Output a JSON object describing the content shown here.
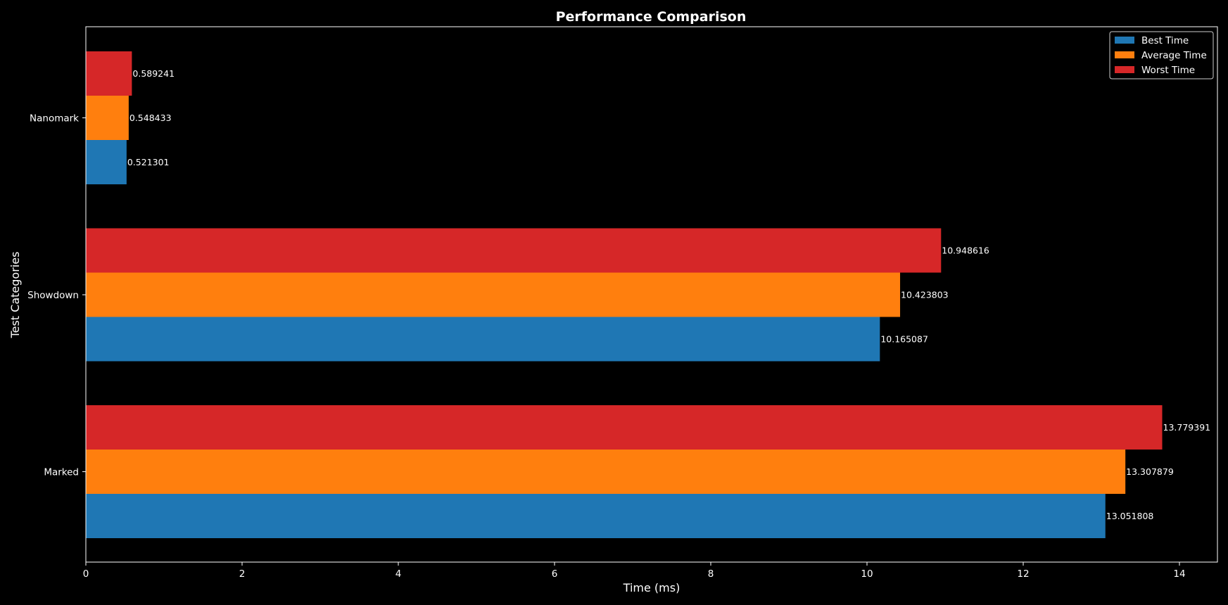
{
  "chart_data": {
    "type": "bar",
    "orientation": "horizontal",
    "title": "Performance Comparison",
    "xlabel": "Time (ms)",
    "ylabel": "Test Categories",
    "categories": [
      "Marked",
      "Showdown",
      "Nanomark"
    ],
    "series": [
      {
        "name": "Best Time",
        "color": "#1f77b4",
        "values": [
          13.051808,
          10.165087,
          0.521301
        ]
      },
      {
        "name": "Average Time",
        "color": "#ff7f0e",
        "values": [
          13.307879,
          10.423803,
          0.548433
        ]
      },
      {
        "name": "Worst Time",
        "color": "#d62728",
        "values": [
          13.779391,
          10.948616,
          0.589241
        ]
      }
    ],
    "xlim": [
      0,
      14.47
    ],
    "xticks": [
      0,
      2,
      4,
      6,
      8,
      10,
      12,
      14
    ],
    "grid": false,
    "legend_position": "top-right",
    "background": "#000000",
    "foreground": "#ffffff"
  }
}
